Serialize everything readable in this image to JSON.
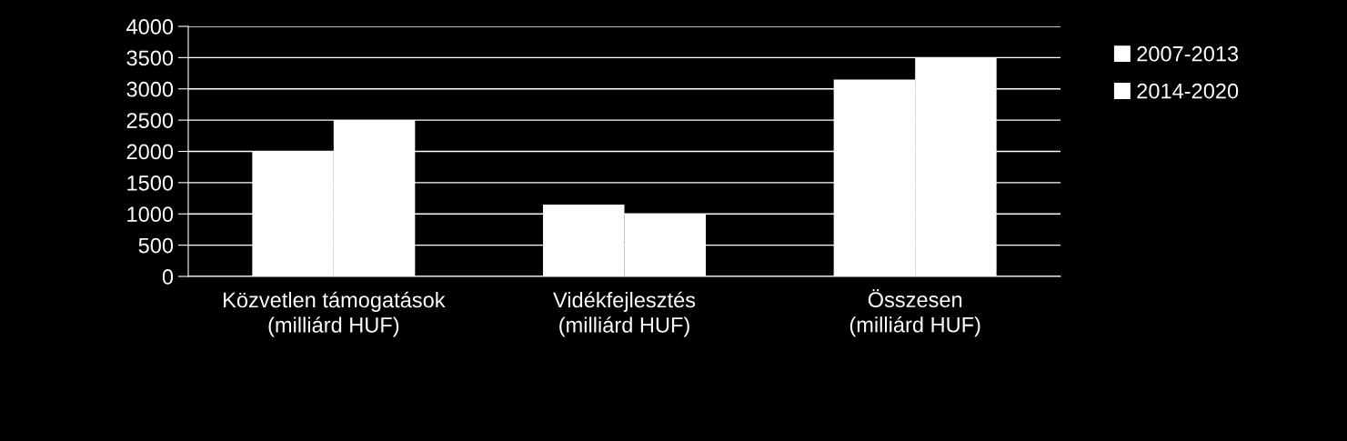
{
  "chart_data": {
    "type": "bar",
    "categories": [
      "Közvetlen támogatások\n(milliárd HUF)",
      "Vidékfejlesztés\n(milliárd HUF)",
      "Összesen\n(milliárd HUF)"
    ],
    "series": [
      {
        "name": "2007-2013",
        "color": "#ffffff",
        "values": [
          2000,
          1150,
          3150
        ]
      },
      {
        "name": "2014-2020",
        "color": "#ffffff",
        "values": [
          2500,
          1000,
          3500
        ]
      }
    ],
    "ylim": [
      0,
      4000
    ],
    "yticks": [
      0,
      500,
      1000,
      1500,
      2000,
      2500,
      3000,
      3500,
      4000
    ],
    "grid": "y",
    "legend": "top right"
  }
}
